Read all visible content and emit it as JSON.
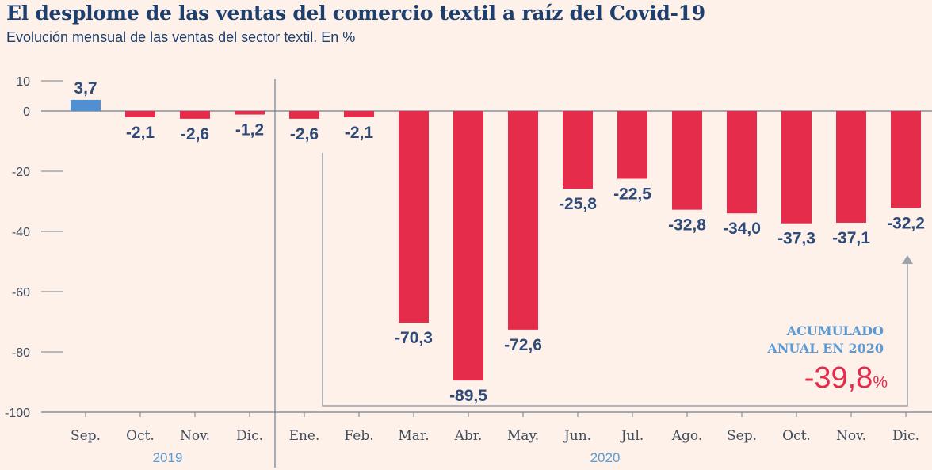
{
  "title": "El desplome de las ventas del comercio textil a raíz del Covid-19",
  "subtitle": "Evolución mensual de las ventas del sector textil. En %",
  "colors": {
    "positive": "#4f8fd2",
    "negative": "#e62c4b",
    "label": "#2d4a78",
    "axis": "#6f7e8f",
    "callout": "#5b9bd5",
    "callout_value": "#e62c4b"
  },
  "chart_data": {
    "type": "bar",
    "categories": [
      "Sep.",
      "Oct.",
      "Nov.",
      "Dic.",
      "Ene.",
      "Feb.",
      "Mar.",
      "Abr.",
      "May.",
      "Jun.",
      "Jul.",
      "Ago.",
      "Sep.",
      "Oct.",
      "Nov.",
      "Dic."
    ],
    "values": [
      3.7,
      -2.1,
      -2.6,
      -1.2,
      -2.6,
      -2.1,
      -70.3,
      -89.5,
      -72.6,
      -25.8,
      -22.5,
      -32.8,
      -34.0,
      -37.3,
      -37.1,
      -32.2
    ],
    "value_labels": [
      "3,7",
      "-2,1",
      "-2,6",
      "-1,2",
      "-2,6",
      "-2,1",
      "-70,3",
      "-89,5",
      "-72,6",
      "-25,8",
      "-22,5",
      "-32,8",
      "-34,0",
      "-37,3",
      "-37,1",
      "-32,2"
    ],
    "year_groups": [
      {
        "label": "2019",
        "start": 0,
        "end": 3
      },
      {
        "label": "2020",
        "start": 4,
        "end": 15
      }
    ],
    "ylim": [
      -100,
      10
    ],
    "yticks": [
      10,
      0,
      -20,
      -40,
      -60,
      -80,
      -100
    ],
    "ytick_labels": [
      "10",
      "0",
      "-20",
      "-40",
      "-60",
      "-80",
      "-100"
    ],
    "annotation": {
      "line1": "ACUMULADO",
      "line2": "ANUAL EN 2020",
      "value": "-39,8",
      "unit": "%"
    }
  }
}
